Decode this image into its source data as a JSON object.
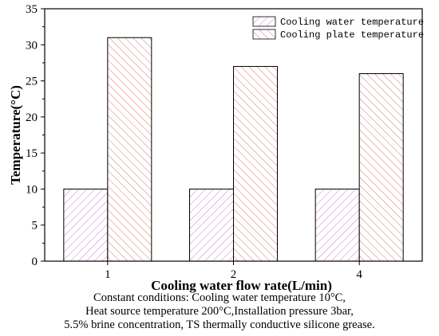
{
  "chart_data": {
    "type": "bar",
    "xlabel": "Cooling water flow rate(L/min)",
    "ylabel": "Temperature(°C)",
    "categories": [
      "1",
      "2",
      "4"
    ],
    "series": [
      {
        "name": "Cooling water temperature",
        "values": [
          10,
          10,
          10
        ],
        "color": "#d17ad1"
      },
      {
        "name": "Cooling plate temperature",
        "values": [
          31,
          27,
          26
        ],
        "color": "#d9776f"
      }
    ],
    "ylim": [
      0,
      35
    ],
    "yticks": [
      0,
      5,
      10,
      15,
      20,
      25,
      30,
      35
    ],
    "grid": false,
    "legend_position": "top-right"
  },
  "caption": {
    "lines": [
      "Constant conditions: Cooling water temperature 10°C,",
      "Heat source temperature 200°C,Installation pressure 3bar,",
      "5.5% brine concentration, TS thermally conductive silicone grease."
    ]
  }
}
